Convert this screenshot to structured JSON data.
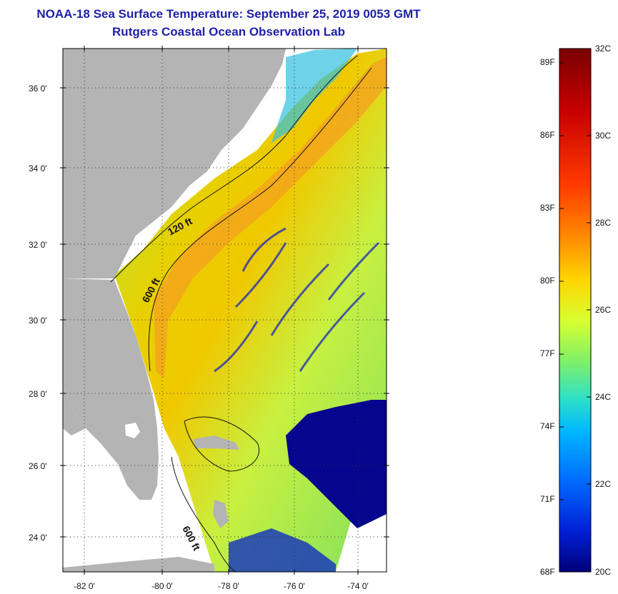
{
  "header": {
    "title": "NOAA-18 Sea Surface Temperature:  September 25, 2019 0053 GMT",
    "subtitle": "Rutgers Coastal Ocean Observation Lab"
  },
  "map": {
    "lat_labels": [
      "36 0'",
      "34 0'",
      "32 0'",
      "30 0'",
      "28 0'",
      "26 0'",
      "24 0'"
    ],
    "lon_labels": [
      "-82 0'",
      "-80 0'",
      "-78 0'",
      "-76 0'",
      "-74 0'"
    ],
    "contour_labels": [
      "120 ft",
      "600 ft",
      "600 ft"
    ]
  },
  "colorbar": {
    "fahrenheit_labels": [
      "89F",
      "86F",
      "83F",
      "80F",
      "77F",
      "74F",
      "71F",
      "68F"
    ],
    "celsius_labels": [
      "32C",
      "30C",
      "28C",
      "26C",
      "24C",
      "22C",
      "20C"
    ],
    "colors": [
      "#7a0000",
      "#c80000",
      "#ff3a00",
      "#ff8a00",
      "#ffd400",
      "#d8ff30",
      "#7cf06a",
      "#2ee0c8",
      "#00b8ff",
      "#0070ff",
      "#0020d8",
      "#00007a"
    ]
  },
  "colors": {
    "title": "#1f1fa8",
    "land": "#b4b4b4",
    "cold_patch": "#05058e"
  }
}
